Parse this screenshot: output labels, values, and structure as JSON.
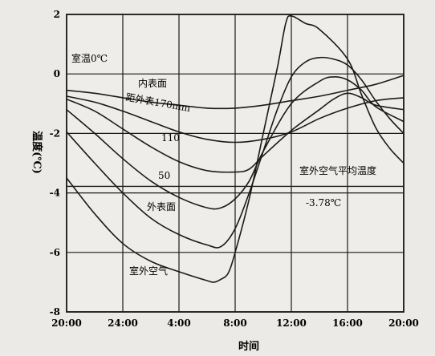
{
  "chart_data": {
    "type": "line",
    "xlabel": "时间",
    "ylabel": "温度(℃)",
    "x_ticks": [
      "20:00",
      "24:00",
      "4:00",
      "8:00",
      "12:00",
      "16:00",
      "20:00"
    ],
    "x_range": [
      20,
      44
    ],
    "y_ticks": [
      "2",
      "0",
      "-2",
      "-4",
      "-6",
      "-8"
    ],
    "y_tick_values": [
      2,
      0,
      -2,
      -4,
      -6,
      -8
    ],
    "y_range": [
      -8,
      2
    ],
    "grid": true,
    "series": [
      {
        "name": "内表面",
        "x": [
          20,
          22,
          24,
          26,
          28,
          30,
          32,
          34,
          36,
          38,
          40,
          42,
          44
        ],
        "y": [
          -0.55,
          -0.65,
          -0.8,
          -0.95,
          -1.05,
          -1.15,
          -1.15,
          -1.05,
          -0.9,
          -0.75,
          -0.55,
          -0.35,
          -0.05
        ]
      },
      {
        "name": "距外表170mm",
        "x": [
          20,
          22,
          24,
          26,
          28,
          30,
          32,
          34,
          36,
          38,
          40,
          42,
          44
        ],
        "y": [
          -0.75,
          -0.95,
          -1.25,
          -1.6,
          -1.95,
          -2.2,
          -2.3,
          -2.2,
          -1.95,
          -1.5,
          -1.15,
          -0.9,
          -0.8
        ]
      },
      {
        "name": "110",
        "x": [
          20,
          22,
          24,
          26,
          28,
          30,
          32,
          33,
          34,
          36,
          38,
          39,
          40,
          41,
          42,
          44
        ],
        "y": [
          -0.85,
          -1.25,
          -1.85,
          -2.45,
          -2.95,
          -3.25,
          -3.3,
          -3.2,
          -2.75,
          -1.9,
          -1.2,
          -0.85,
          -0.65,
          -0.8,
          -1.05,
          -1.2
        ]
      },
      {
        "name": "50",
        "x": [
          20,
          22,
          24,
          26,
          28,
          30,
          31,
          32,
          33,
          34,
          36,
          38,
          39,
          40,
          41,
          42,
          44
        ],
        "y": [
          -1.2,
          -2.0,
          -2.85,
          -3.6,
          -4.15,
          -4.5,
          -4.5,
          -4.2,
          -3.6,
          -2.6,
          -1.0,
          -0.25,
          -0.1,
          -0.2,
          -0.55,
          -1.1,
          -1.6
        ]
      },
      {
        "name": "外表面",
        "x": [
          20,
          22,
          24,
          26,
          28,
          30,
          31,
          32,
          33,
          34,
          35,
          36,
          37,
          38,
          39,
          40,
          41,
          42,
          43,
          44
        ],
        "y": [
          -1.95,
          -3.0,
          -4.0,
          -4.85,
          -5.4,
          -5.75,
          -5.8,
          -5.2,
          -4.0,
          -2.6,
          -1.2,
          -0.1,
          0.4,
          0.55,
          0.5,
          0.3,
          -0.2,
          -0.9,
          -1.5,
          -2.0
        ]
      },
      {
        "name": "室外空气",
        "x": [
          20,
          22,
          24,
          26,
          28,
          30,
          30.5,
          31,
          31.5,
          32,
          33,
          34,
          35,
          35.6,
          36,
          37,
          38,
          40,
          41,
          42,
          43,
          44
        ],
        "y": [
          -3.5,
          -4.7,
          -5.7,
          -6.3,
          -6.65,
          -6.95,
          -7.0,
          -6.9,
          -6.7,
          -6.0,
          -4.2,
          -2.0,
          0.2,
          1.7,
          1.95,
          1.7,
          1.5,
          0.5,
          -0.7,
          -1.8,
          -2.5,
          -3.0
        ]
      }
    ],
    "reference_line": {
      "name": "室外空气平均温度",
      "value_label": "-3.78℃",
      "y": -3.78
    },
    "annotations": {
      "room": "室温0℃"
    }
  }
}
